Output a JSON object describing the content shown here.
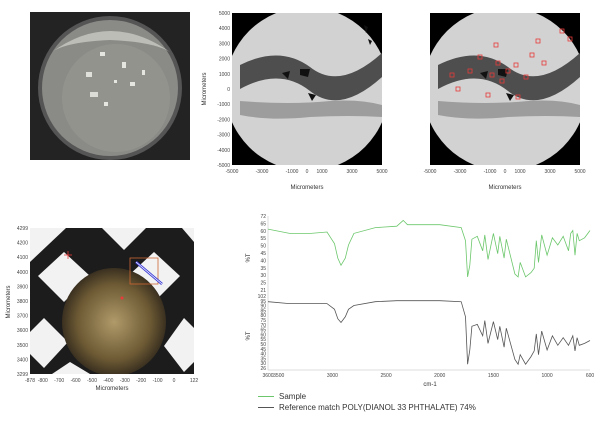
{
  "colors": {
    "sample_line": "#6cc76c",
    "reference_line": "#555555",
    "map_marker": "#e83a3a",
    "selection_box": "#cc6633",
    "scan_line": "#3b3bd8"
  },
  "sample_image": {
    "description_icon": "sample-disc-photo"
  },
  "micro_maps": {
    "x_ticks": [
      "-5000",
      "-3000",
      "-1000",
      "0",
      "1000",
      "3000",
      "5000"
    ],
    "y_ticks": [
      "5000",
      "4000",
      "3000",
      "2000",
      "1000",
      "0",
      "-1000",
      "-2000",
      "-3000",
      "-4000",
      "-5000"
    ],
    "x_label": "Micrometers",
    "y_label": "Micrometers"
  },
  "zoom_map": {
    "x_ticks": [
      "-878",
      "-800",
      "-700",
      "-600",
      "-500",
      "-400",
      "-300",
      "-200",
      "-100",
      "0",
      "122"
    ],
    "y_ticks": [
      "4299",
      "4200",
      "4100",
      "4000",
      "3900",
      "3800",
      "3700",
      "3600",
      "3500",
      "3400",
      "3299"
    ],
    "x_label": "Micrometers",
    "y_label": "Micrometers"
  },
  "chart_data": {
    "type": "line",
    "xlabel": "cm-1",
    "x_ticks": [
      "3600",
      "3500",
      "3000",
      "2500",
      "2000",
      "1500",
      "1000",
      "600"
    ],
    "x_range": [
      3600,
      600
    ],
    "top": {
      "ylabel": "%T",
      "y_ticks": [
        "72",
        "65",
        "60",
        "55",
        "50",
        "45",
        "40",
        "35",
        "30",
        "25",
        "21"
      ],
      "ylim": [
        21,
        72
      ],
      "series": [
        {
          "name": "Sample",
          "x": [
            3600,
            3400,
            3200,
            3050,
            2980,
            2950,
            2920,
            2880,
            2850,
            2800,
            2600,
            2400,
            2340,
            2300,
            2250,
            2000,
            1800,
            1760,
            1740,
            1720,
            1700,
            1650,
            1600,
            1580,
            1550,
            1500,
            1460,
            1440,
            1400,
            1380,
            1300,
            1270,
            1250,
            1200,
            1150,
            1120,
            1100,
            1080,
            1050,
            1000,
            950,
            900,
            850,
            800,
            780,
            760,
            740,
            720,
            700,
            650,
            600
          ],
          "values": [
            63,
            60,
            60,
            61,
            53,
            43,
            38,
            43,
            52,
            60,
            64,
            65,
            69,
            66,
            66,
            66,
            64,
            55,
            30,
            38,
            56,
            58,
            48,
            59,
            42,
            60,
            46,
            58,
            43,
            56,
            32,
            30,
            40,
            30,
            33,
            36,
            55,
            40,
            59,
            45,
            57,
            52,
            58,
            48,
            60,
            62,
            45,
            60,
            55,
            57,
            62
          ]
        }
      ]
    },
    "bottom": {
      "ylabel": "%T",
      "y_ticks": [
        "102",
        "95",
        "90",
        "85",
        "80",
        "75",
        "70",
        "65",
        "60",
        "55",
        "50",
        "45",
        "40",
        "35",
        "30",
        "26"
      ],
      "ylim": [
        26,
        102
      ],
      "series": [
        {
          "name": "Reference match POLY(DIANOL 33 PHTHALATE) 74%",
          "x": [
            3600,
            3400,
            3200,
            3050,
            2980,
            2950,
            2920,
            2880,
            2850,
            2800,
            2600,
            2400,
            2000,
            1800,
            1760,
            1740,
            1720,
            1700,
            1650,
            1600,
            1580,
            1550,
            1500,
            1460,
            1440,
            1400,
            1380,
            1300,
            1270,
            1250,
            1200,
            1150,
            1120,
            1100,
            1080,
            1050,
            1000,
            950,
            900,
            850,
            800,
            780,
            760,
            740,
            720,
            700,
            650,
            600
          ],
          "values": [
            96,
            94,
            94,
            94,
            88,
            78,
            74,
            80,
            88,
            92,
            96,
            97,
            97,
            96,
            80,
            30,
            45,
            70,
            72,
            60,
            76,
            52,
            75,
            56,
            70,
            48,
            68,
            35,
            30,
            40,
            30,
            38,
            44,
            62,
            40,
            65,
            45,
            60,
            50,
            58,
            50,
            55,
            60,
            44,
            58,
            50,
            52,
            55
          ]
        }
      ]
    }
  },
  "legend": {
    "sample_label": "Sample",
    "reference_label": "Reference match POLY(DIANOL 33 PHTHALATE) 74%"
  }
}
